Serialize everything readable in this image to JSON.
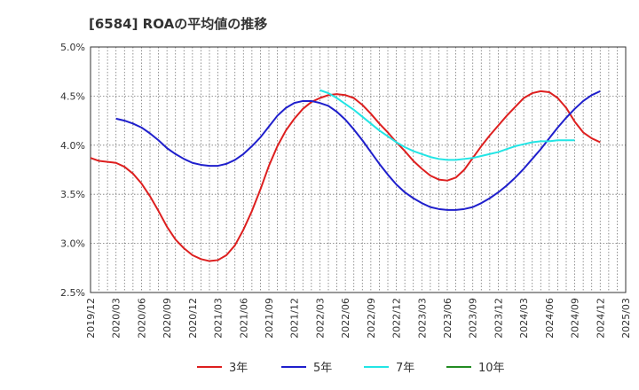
{
  "title": "[6584]  ROAの平均値の推移",
  "chart_data": {
    "type": "line",
    "title": "[6584]  ROAの平均値の推移",
    "xlabel": "",
    "ylabel": "",
    "ylim": [
      2.5,
      5.0
    ],
    "yticks": [
      2.5,
      3.0,
      3.5,
      4.0,
      4.5,
      5.0
    ],
    "ytick_labels": [
      "2.5%",
      "3.0%",
      "3.5%",
      "4.0%",
      "4.5%",
      "5.0%"
    ],
    "xtick_labels": [
      "2019/12",
      "2020/03",
      "2020/06",
      "2020/09",
      "2020/12",
      "2021/03",
      "2021/06",
      "2021/09",
      "2021/12",
      "2022/03",
      "2022/06",
      "2022/09",
      "2022/12",
      "2023/03",
      "2023/06",
      "2023/09",
      "2023/12",
      "2024/03",
      "2024/06",
      "2024/09",
      "2024/12",
      "2025/03"
    ],
    "grid": true,
    "legend_position": "bottom",
    "series": [
      {
        "name": "3年",
        "color": "#dd1f1f",
        "start": "2019/12",
        "values": [
          3.87,
          3.84,
          3.83,
          3.82,
          3.78,
          3.71,
          3.61,
          3.48,
          3.33,
          3.17,
          3.04,
          2.95,
          2.88,
          2.84,
          2.82,
          2.83,
          2.88,
          2.98,
          3.14,
          3.33,
          3.55,
          3.79,
          3.99,
          4.15,
          4.27,
          4.37,
          4.44,
          4.48,
          4.51,
          4.52,
          4.51,
          4.48,
          4.41,
          4.32,
          4.22,
          4.13,
          4.03,
          3.94,
          3.84,
          3.76,
          3.69,
          3.65,
          3.64,
          3.67,
          3.75,
          3.87,
          3.99,
          4.1,
          4.2,
          4.3,
          4.39,
          4.48,
          4.53,
          4.55,
          4.54,
          4.48,
          4.38,
          4.24,
          4.13,
          4.07,
          4.03
        ]
      },
      {
        "name": "5年",
        "color": "#1f1fcc",
        "start": "2020/03",
        "values": [
          4.27,
          4.25,
          4.22,
          4.18,
          4.12,
          4.05,
          3.97,
          3.91,
          3.86,
          3.82,
          3.8,
          3.79,
          3.79,
          3.81,
          3.85,
          3.91,
          3.99,
          4.08,
          4.19,
          4.3,
          4.38,
          4.43,
          4.45,
          4.45,
          4.43,
          4.4,
          4.34,
          4.26,
          4.16,
          4.05,
          3.93,
          3.81,
          3.7,
          3.6,
          3.52,
          3.46,
          3.41,
          3.37,
          3.35,
          3.34,
          3.34,
          3.35,
          3.37,
          3.41,
          3.46,
          3.52,
          3.59,
          3.67,
          3.76,
          3.86,
          3.96,
          4.07,
          4.18,
          4.28,
          4.37,
          4.45,
          4.51,
          4.55
        ]
      },
      {
        "name": "7年",
        "color": "#22e5e5",
        "start": "2022/03",
        "values": [
          4.56,
          4.53,
          4.48,
          4.42,
          4.36,
          4.29,
          4.22,
          4.15,
          4.09,
          4.03,
          3.98,
          3.94,
          3.91,
          3.88,
          3.86,
          3.85,
          3.85,
          3.86,
          3.87,
          3.89,
          3.91,
          3.93,
          3.96,
          3.99,
          4.01,
          4.03,
          4.04,
          4.04,
          4.05,
          4.05,
          4.05
        ]
      },
      {
        "name": "10年",
        "color": "#228b22",
        "start": "2024/12",
        "values": []
      }
    ]
  }
}
